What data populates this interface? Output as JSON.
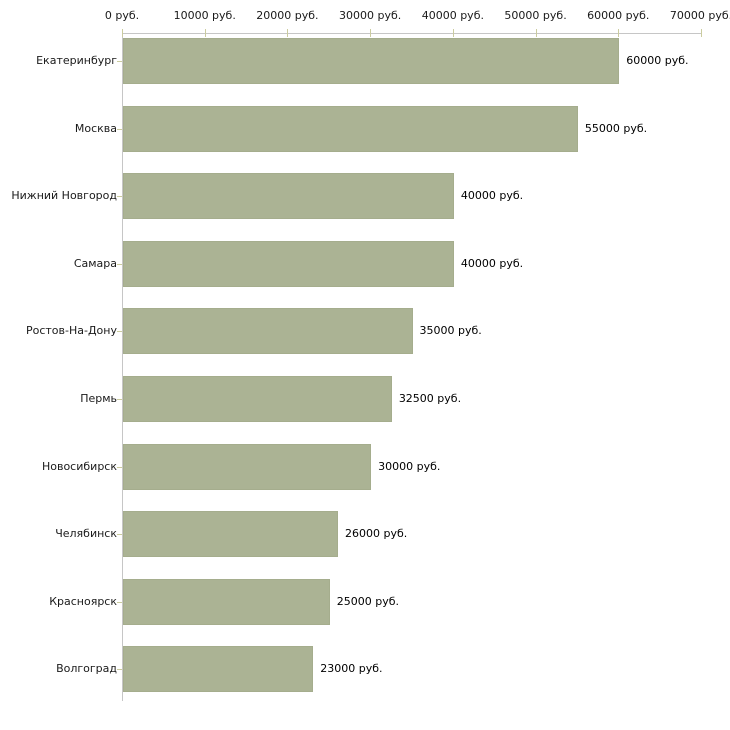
{
  "chart_data": {
    "type": "bar",
    "orientation": "horizontal",
    "title": "",
    "xlabel": "",
    "ylabel": "",
    "unit": "руб.",
    "categories": [
      "Екатеринбург",
      "Москва",
      "Нижний Новгород",
      "Самара",
      "Ростов-На-Дону",
      "Пермь",
      "Новосибирск",
      "Челябинск",
      "Красноярск",
      "Волгоград"
    ],
    "values": [
      60000,
      55000,
      40000,
      40000,
      35000,
      32500,
      30000,
      26000,
      25000,
      23000
    ],
    "value_labels": [
      "60000 руб.",
      "55000 руб.",
      "40000 руб.",
      "40000 руб.",
      "35000 руб.",
      "32500 руб.",
      "30000 руб.",
      "26000 руб.",
      "25000 руб.",
      "23000 руб."
    ],
    "x_ticks": [
      0,
      10000,
      20000,
      30000,
      40000,
      50000,
      60000,
      70000
    ],
    "x_tick_labels": [
      "0 руб.",
      "10000 руб.",
      "20000 руб.",
      "30000 руб.",
      "40000 руб.",
      "50000 руб.",
      "60000 руб.",
      "70000 руб."
    ],
    "xlim": [
      0,
      70000
    ],
    "grid": false,
    "legend": "none",
    "colors": {
      "bar_fill": "#abb394",
      "bar_border": "#a5ad8d",
      "axis_line": "#c6c6c6",
      "tick_mark": "#cbcc9f",
      "text": "#1a1a1a",
      "background": "#ffffff"
    }
  }
}
